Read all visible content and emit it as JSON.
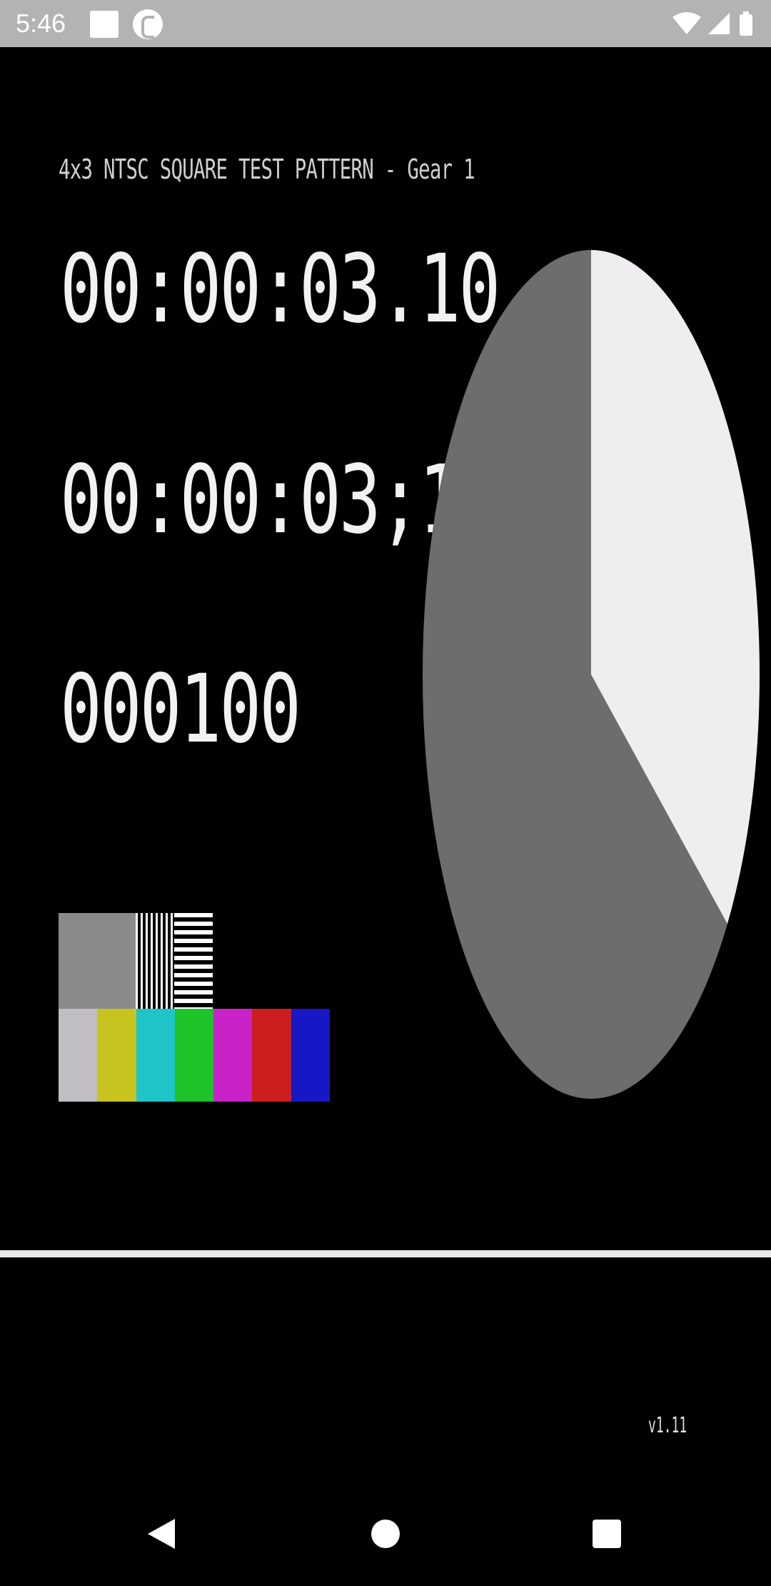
{
  "status_bar": {
    "time": "5:46",
    "background": "#b3b3b3"
  },
  "video": {
    "title": "4x3 NTSC SQUARE TEST PATTERN - Gear 1",
    "timecode_fractional": "00:00:03.10",
    "timecode_dropframe": "00:00:03;10",
    "frame_counter": "000100",
    "version": "v1.11",
    "pie": {
      "slice_color": "#efedf0",
      "body_color": "#6d6d6d",
      "filled_fraction": 0.35
    },
    "color_bars": {
      "top_row": [
        "#8a8a8a",
        "#8a8a8a",
        "vertical-lines",
        "horizontal-lines"
      ],
      "bottom_row": [
        "#c0bec3",
        "#c8c41f",
        "#1fc4c8",
        "#1ec32a",
        "#c822c8",
        "#cd1e1f",
        "#1717c6"
      ]
    },
    "divider_color": "#e8e8e8"
  },
  "nav_bar": {
    "buttons": [
      "back-icon",
      "home-icon",
      "recents-icon"
    ]
  }
}
